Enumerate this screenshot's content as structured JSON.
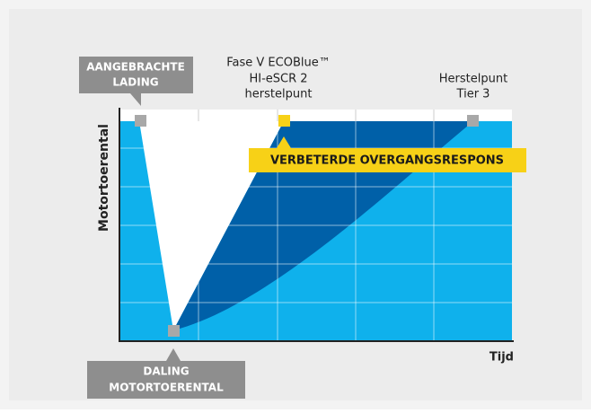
{
  "title_lines": [
    "Fase V ECOBlue™",
    "HI-eSCR 2",
    "herstelpunt"
  ],
  "tier3_lines": [
    "Herstelpunt",
    "Tier 3"
  ],
  "applied_load_lines": [
    "AANGEBRACHTE",
    "LADING"
  ],
  "speed_drop_lines": [
    "DALING",
    "MOTORTOERENTAL"
  ],
  "transient_label": "VERBETERDE OVERGANGSRESPONS",
  "y_axis_label": "Motortoerental",
  "x_axis_label": "Tijd"
}
